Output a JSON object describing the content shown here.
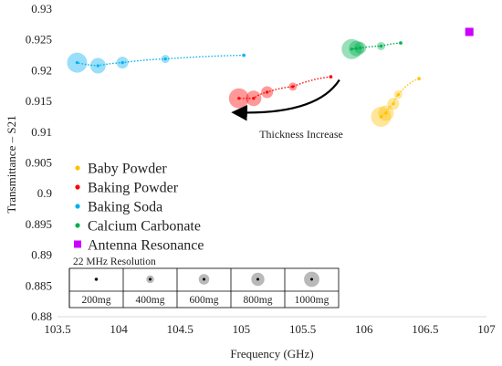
{
  "chart_data": {
    "type": "scatter",
    "xlabel": "Frequency (GHz)",
    "ylabel": "Transmittance – S21",
    "xlim": [
      103.5,
      107
    ],
    "ylim": [
      0.88,
      0.93
    ],
    "x_ticks": [
      "103.5",
      "104",
      "104.5",
      "105",
      "105.5",
      "106",
      "106.5",
      "107"
    ],
    "y_ticks": [
      "0.88",
      "0.885",
      "0.89",
      "0.895",
      "0.9",
      "0.905",
      "0.91",
      "0.915",
      "0.92",
      "0.925",
      "0.93"
    ],
    "grid": false,
    "legend_position": "bottom-left",
    "series": [
      {
        "name": "Baby Powder",
        "color": "#FFC000",
        "marker": "circle",
        "points": [
          {
            "x": 106.45,
            "y": 0.9187,
            "mass_mg": 200
          },
          {
            "x": 106.28,
            "y": 0.9161,
            "mass_mg": 400
          },
          {
            "x": 106.24,
            "y": 0.9146,
            "mass_mg": 600
          },
          {
            "x": 106.18,
            "y": 0.9131,
            "mass_mg": 800
          },
          {
            "x": 106.14,
            "y": 0.9125,
            "mass_mg": 1000
          }
        ]
      },
      {
        "name": "Baking Powder",
        "color": "#FF0000",
        "marker": "circle",
        "points": [
          {
            "x": 105.73,
            "y": 0.919,
            "mass_mg": 200
          },
          {
            "x": 105.42,
            "y": 0.9174,
            "mass_mg": 400
          },
          {
            "x": 105.21,
            "y": 0.9165,
            "mass_mg": 600
          },
          {
            "x": 105.1,
            "y": 0.9155,
            "mass_mg": 800
          },
          {
            "x": 104.98,
            "y": 0.9155,
            "mass_mg": 1000
          }
        ]
      },
      {
        "name": "Baking Soda",
        "color": "#00B0F0",
        "marker": "circle",
        "points": [
          {
            "x": 105.02,
            "y": 0.9225,
            "mass_mg": 200
          },
          {
            "x": 104.38,
            "y": 0.9219,
            "mass_mg": 400
          },
          {
            "x": 104.03,
            "y": 0.9213,
            "mass_mg": 600
          },
          {
            "x": 103.83,
            "y": 0.9208,
            "mass_mg": 800
          },
          {
            "x": 103.66,
            "y": 0.9213,
            "mass_mg": 1000
          }
        ]
      },
      {
        "name": "Calcium Carbonate",
        "color": "#00B050",
        "marker": "circle",
        "points": [
          {
            "x": 106.3,
            "y": 0.9245,
            "mass_mg": 200
          },
          {
            "x": 106.14,
            "y": 0.924,
            "mass_mg": 400
          },
          {
            "x": 105.97,
            "y": 0.9237,
            "mass_mg": 600
          },
          {
            "x": 105.94,
            "y": 0.9236,
            "mass_mg": 800
          },
          {
            "x": 105.9,
            "y": 0.9235,
            "mass_mg": 1000
          }
        ]
      },
      {
        "name": "Antenna Resonance",
        "color": "#CC00FF",
        "marker": "square",
        "points": [
          {
            "x": 106.86,
            "y": 0.9263
          }
        ]
      }
    ],
    "annotation": {
      "text": "Thickness Increase",
      "arrow_from": [
        105.8,
        0.9185
      ],
      "arrow_to": [
        104.95,
        0.9132
      ]
    },
    "resolution_key": {
      "title": "22 MHz Resolution",
      "items": [
        "200mg",
        "400mg",
        "600mg",
        "800mg",
        "1000mg"
      ]
    }
  }
}
